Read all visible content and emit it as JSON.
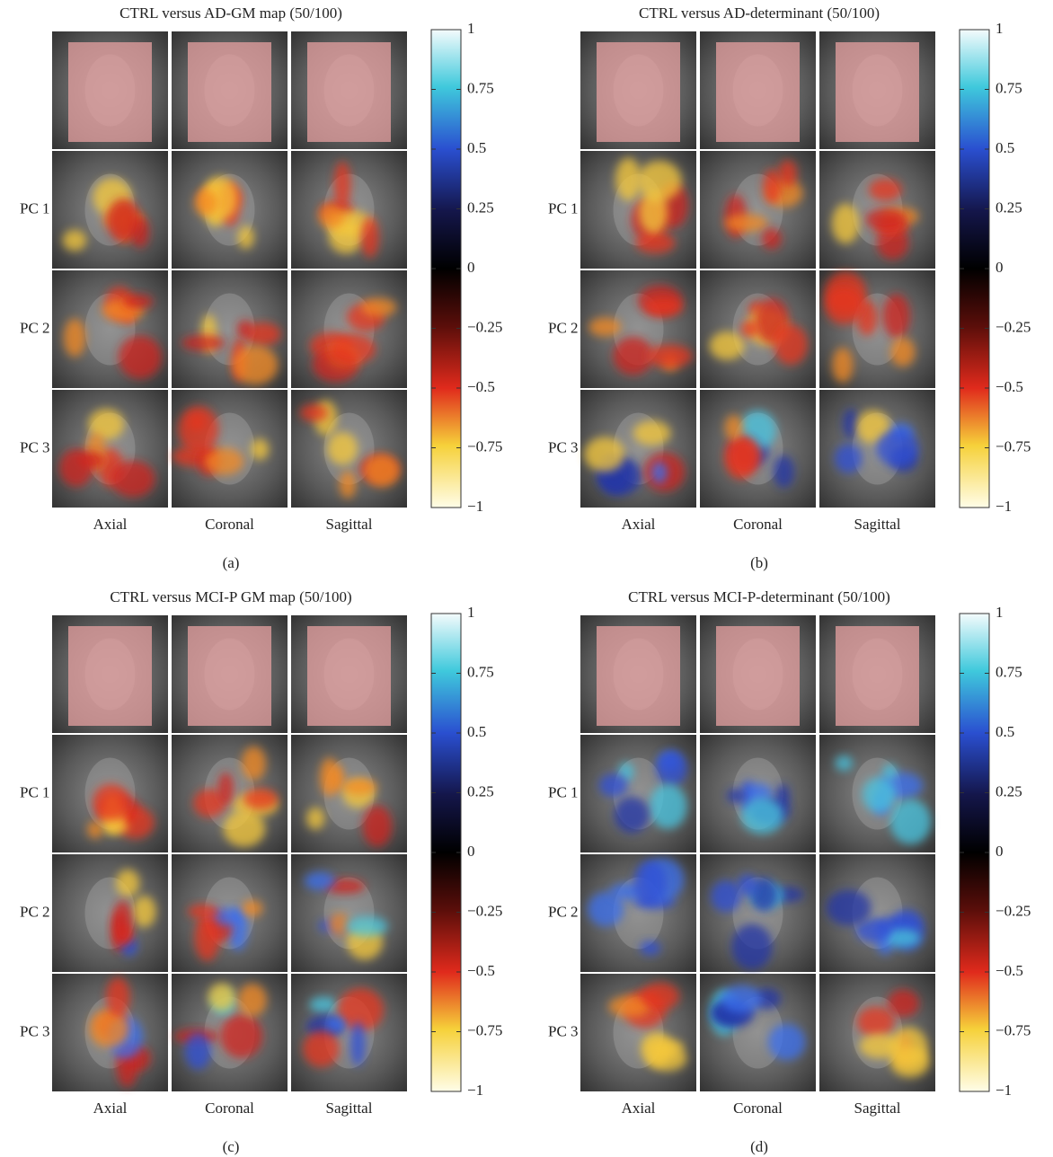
{
  "panels": [
    {
      "title": "CTRL versus AD-GM map (50/100)",
      "caption": "(a)",
      "row_labels": [
        "PC 1",
        "PC 2",
        "PC 3"
      ],
      "column_labels": [
        "Axial",
        "Coronal",
        "Sagittal"
      ],
      "colorbar": {
        "lim": [
          -1,
          1
        ],
        "ticks": [
          1,
          0.75,
          0.5,
          0.25,
          0,
          {
            "value": -0.25,
            "label": "−0.25"
          },
          {
            "value": -0.5,
            "label": "−0.5"
          },
          {
            "value": -0.75,
            "label": "−0.75"
          },
          {
            "value": -1,
            "label": "−1"
          }
        ]
      }
    },
    {
      "title": "CTRL versus AD-determinant (50/100)",
      "caption": "(b)",
      "row_labels": [
        "PC 1",
        "PC 2",
        "PC 3"
      ],
      "column_labels": [
        "Axial",
        "Coronal",
        "Sagittal"
      ],
      "colorbar": {
        "lim": [
          -1,
          1
        ],
        "ticks": [
          1,
          0.75,
          0.5,
          0.25,
          0,
          {
            "value": -0.25,
            "label": "−0.25"
          },
          {
            "value": -0.5,
            "label": "−0.5"
          },
          {
            "value": -0.75,
            "label": "−0.75"
          },
          {
            "value": -1,
            "label": "−1"
          }
        ]
      }
    },
    {
      "title": "CTRL versus MCI-P GM map (50/100)",
      "caption": "(c)",
      "row_labels": [
        "PC 1",
        "PC 2",
        "PC 3"
      ],
      "column_labels": [
        "Axial",
        "Coronal",
        "Sagittal"
      ],
      "colorbar": {
        "lim": [
          -1,
          1
        ],
        "ticks": [
          1,
          0.75,
          0.5,
          0.25,
          0,
          {
            "value": -0.25,
            "label": "−0.25"
          },
          {
            "value": -0.5,
            "label": "−0.5"
          },
          {
            "value": -0.75,
            "label": "−0.75"
          },
          {
            "value": -1,
            "label": "−1"
          }
        ]
      }
    },
    {
      "title": "CTRL versus MCI-P-determinant (50/100)",
      "caption": "(d)",
      "row_labels": [
        "PC 1",
        "PC 2",
        "PC 3"
      ],
      "column_labels": [
        "Axial",
        "Coronal",
        "Sagittal"
      ],
      "colorbar": {
        "lim": [
          -1,
          1
        ],
        "ticks": [
          1,
          0.75,
          0.5,
          0.25,
          0,
          {
            "value": -0.25,
            "label": "−0.25"
          },
          {
            "value": -0.5,
            "label": "−0.5"
          },
          {
            "value": -0.75,
            "label": "−0.75"
          },
          {
            "value": -1,
            "label": "−1"
          }
        ]
      }
    }
  ]
}
